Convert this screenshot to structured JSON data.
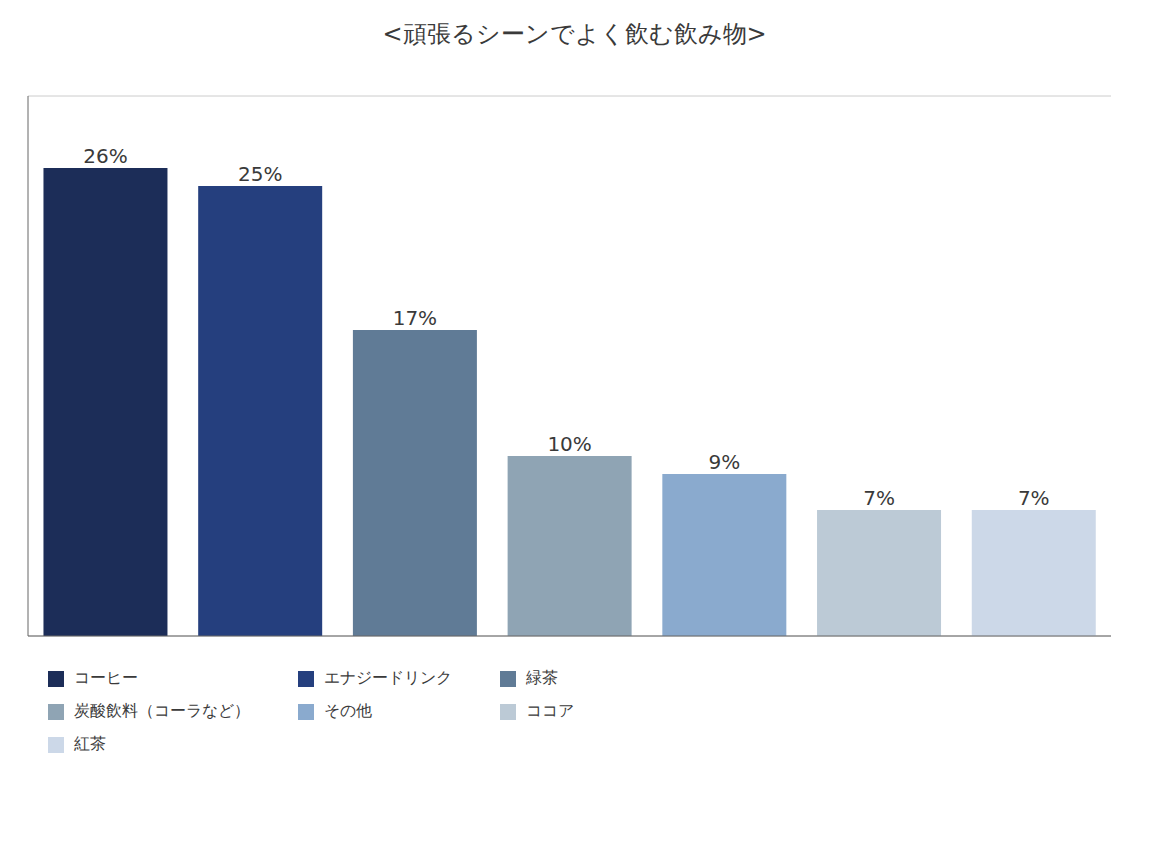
{
  "chart_data": {
    "type": "bar",
    "title": "<頑張るシーンでよく飲む飲み物>",
    "categories": [
      "コーヒー",
      "エナジードリンク",
      "緑茶",
      "炭酸飲料（コーラなど）",
      "その他",
      "ココア",
      "紅茶"
    ],
    "values": [
      26,
      25,
      17,
      10,
      9,
      7,
      7
    ],
    "value_labels": [
      "26%",
      "25%",
      "17%",
      "10%",
      "9%",
      "7%",
      "7%"
    ],
    "data_labels": true,
    "colors": [
      "#1c2d58",
      "#253f7e",
      "#607b96",
      "#8fa4b4",
      "#8aaace",
      "#bccad6",
      "#ccd8e8"
    ],
    "ylim": [
      0,
      30
    ],
    "yticks": [
      0,
      5,
      10,
      15,
      20,
      25,
      30
    ],
    "grid": true,
    "tick_labels": false,
    "legend": "bottom"
  }
}
